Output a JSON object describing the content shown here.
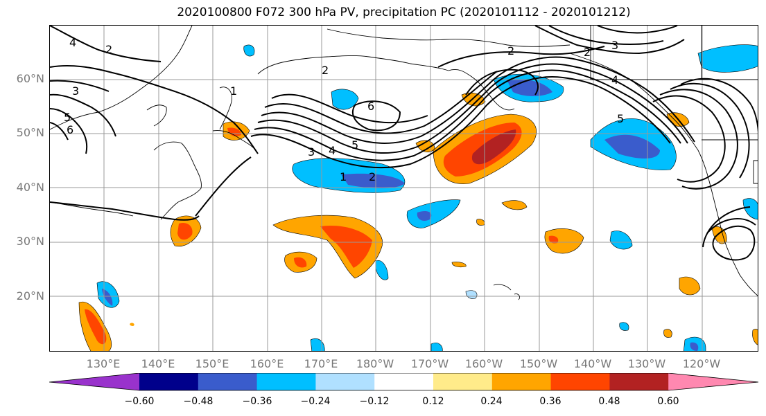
{
  "title": "2020100800 F072 300 hPa PV, precipitation PC (2020101112 - 2020101212)",
  "lat_labels": [
    "60°N",
    "50°N",
    "40°N",
    "30°N",
    "20°N"
  ],
  "lon_labels": [
    "130°E",
    "140°E",
    "150°E",
    "160°E",
    "170°E",
    "180°W",
    "170°W",
    "160°W",
    "150°W",
    "140°W",
    "130°W",
    "120°W"
  ],
  "contour_labels": [
    "1",
    "2",
    "3",
    "4",
    "5",
    "6",
    "2",
    "3",
    "4",
    "5",
    "6",
    "1",
    "2",
    "4",
    "3",
    "2",
    "5",
    "2"
  ],
  "colorbar": {
    "ticks": [
      "−0.60",
      "−0.48",
      "−0.36",
      "−0.24",
      "−0.12",
      "0.12",
      "0.24",
      "0.36",
      "0.48",
      "0.60"
    ],
    "colors": [
      "#9932cc",
      "#00008b",
      "#3a5ccc",
      "#00bfff",
      "#b0e0ff",
      "#ffffff",
      "#ffeb8a",
      "#ffa500",
      "#ff4500",
      "#b22222",
      "#ff88b0"
    ],
    "extend": "both"
  },
  "colors": {
    "neg_strong": "#3a5ccc",
    "neg_med": "#00bfff",
    "neg_weak": "#b0e0ff",
    "pos_weak": "#ffeb8a",
    "pos_med": "#ffa500",
    "pos_strong": "#ff4500",
    "pos_max": "#b22222",
    "contour": "#000000",
    "grid": "#999999",
    "axis_label": "#777777"
  }
}
